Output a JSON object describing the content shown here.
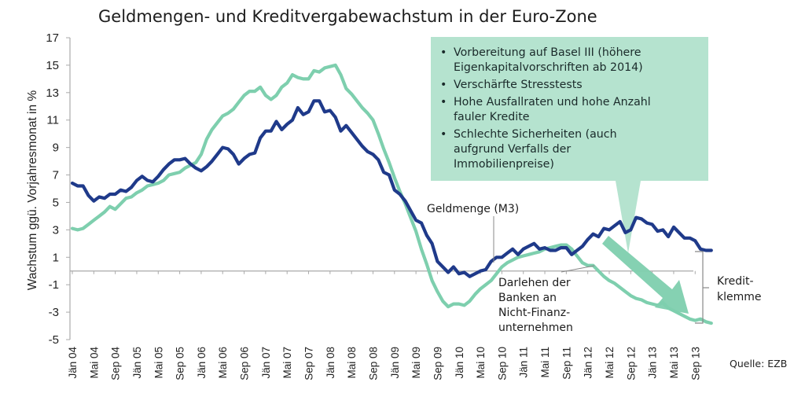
{
  "chart_data": {
    "type": "line",
    "title": "Geldmengen- und Kreditvergabewachstum in der Euro-Zone",
    "xlabel": "",
    "ylabel": "Wachstum ggü. Vorjahresmonat in %",
    "ylim": [
      -5,
      17
    ],
    "yticks": [
      17,
      15,
      13,
      11,
      9,
      7,
      5,
      3,
      1,
      -1,
      -3,
      -5
    ],
    "grid": false,
    "x_start": "Jän 04",
    "x_end": "Dez 13",
    "x_ticks": [
      "Jän 04",
      "Mai 04",
      "Sep 04",
      "Jän 05",
      "Mai 05",
      "Sep 05",
      "Jän 06",
      "Mai 06",
      "Sep 06",
      "Jän 07",
      "Mai 07",
      "Sep 07",
      "Jän 08",
      "Mai 08",
      "Sep 08",
      "Jän 09",
      "Mai 09",
      "Sep 09",
      "Jän 10",
      "Mai 10",
      "Sep 10",
      "Jän 11",
      "Mai 11",
      "Sep 11",
      "Jän 12",
      "Mai 12",
      "Sep 12",
      "Jän 13",
      "Mai 13",
      "Sep 13"
    ],
    "series": [
      {
        "name": "Geldmenge (M3)",
        "color": "#1f3a8a",
        "values": [
          6.4,
          6.2,
          6.2,
          5.5,
          5.1,
          5.4,
          5.3,
          5.6,
          5.6,
          5.9,
          5.8,
          6.1,
          6.6,
          6.9,
          6.6,
          6.5,
          6.9,
          7.4,
          7.8,
          8.1,
          8.1,
          8.2,
          7.8,
          7.5,
          7.3,
          7.6,
          8.0,
          8.5,
          9.0,
          8.9,
          8.5,
          7.8,
          8.2,
          8.5,
          8.6,
          9.7,
          10.2,
          10.2,
          10.9,
          10.3,
          10.7,
          11.0,
          11.9,
          11.4,
          11.6,
          12.4,
          12.4,
          11.6,
          11.7,
          11.2,
          10.2,
          10.6,
          10.1,
          9.6,
          9.1,
          8.7,
          8.5,
          8.1,
          7.2,
          7.0,
          5.9,
          5.6,
          5.1,
          4.4,
          3.7,
          3.5,
          2.6,
          2.0,
          0.7,
          0.3,
          -0.1,
          0.3,
          -0.2,
          -0.1,
          -0.4,
          -0.2,
          0.0,
          0.1,
          0.7,
          1.0,
          1.0,
          1.3,
          1.6,
          1.2,
          1.6,
          1.8,
          2.0,
          1.6,
          1.7,
          1.5,
          1.5,
          1.7,
          1.7,
          1.2,
          1.5,
          1.8,
          2.3,
          2.7,
          2.5,
          3.1,
          3.0,
          3.3,
          3.6,
          2.8,
          3.0,
          3.9,
          3.8,
          3.5,
          3.4,
          2.9,
          3.0,
          2.5,
          3.2,
          2.8,
          2.4,
          2.4,
          2.2,
          1.6,
          1.5,
          1.5
        ]
      },
      {
        "name": "Darlehen der Banken an Nicht-Finanzunternehmen",
        "color": "#7ecfae",
        "values": [
          3.1,
          3.0,
          3.1,
          3.4,
          3.7,
          4.0,
          4.3,
          4.7,
          4.5,
          4.9,
          5.3,
          5.4,
          5.7,
          5.9,
          6.2,
          6.3,
          6.4,
          6.6,
          7.0,
          7.1,
          7.2,
          7.5,
          7.7,
          7.9,
          8.5,
          9.6,
          10.3,
          10.8,
          11.3,
          11.5,
          11.8,
          12.3,
          12.8,
          13.1,
          13.1,
          13.4,
          12.8,
          12.5,
          12.8,
          13.4,
          13.7,
          14.3,
          14.1,
          14.0,
          14.0,
          14.6,
          14.5,
          14.8,
          14.9,
          15.0,
          14.3,
          13.3,
          12.9,
          12.4,
          11.9,
          11.5,
          11.0,
          10.0,
          8.9,
          7.9,
          6.8,
          5.8,
          4.9,
          3.9,
          2.9,
          1.6,
          0.5,
          -0.7,
          -1.5,
          -2.2,
          -2.6,
          -2.4,
          -2.4,
          -2.5,
          -2.2,
          -1.7,
          -1.3,
          -1.0,
          -0.7,
          -0.2,
          0.3,
          0.6,
          0.8,
          1.0,
          1.1,
          1.2,
          1.3,
          1.4,
          1.6,
          1.7,
          1.8,
          1.9,
          1.9,
          1.6,
          1.1,
          0.6,
          0.4,
          0.4,
          0.0,
          -0.4,
          -0.7,
          -0.9,
          -1.2,
          -1.5,
          -1.8,
          -2.0,
          -2.1,
          -2.3,
          -2.4,
          -2.5,
          -2.3,
          -2.7,
          -2.9,
          -3.1,
          -3.3,
          -3.5,
          -3.6,
          -3.5,
          -3.7,
          -3.8
        ]
      }
    ],
    "annotations": {
      "m3_label": "Geldmenge (M3)",
      "loans_label_lines": [
        "Darlehen der",
        "Banken an",
        "Nicht-Finanz-",
        "unternehmen"
      ],
      "credit_crunch_lines": [
        "Kredit-",
        "klemme"
      ],
      "callout_bullets": [
        [
          "Vorbereitung auf Basel III (höhere",
          "Eigenkapitalvorschriften ab 2014)"
        ],
        [
          "Verschärfte Stresstests"
        ],
        [
          "Hohe Ausfallraten und hohe Anzahl",
          "fauler Kredite"
        ],
        [
          "Schlechte Sicherheiten (auch",
          "aufgrund Verfalls der",
          "Immobilienpreise)"
        ]
      ],
      "callout_color": "#b5e3cf",
      "arrow_color": "#7ecfae"
    },
    "source": "Quelle: EZB"
  }
}
